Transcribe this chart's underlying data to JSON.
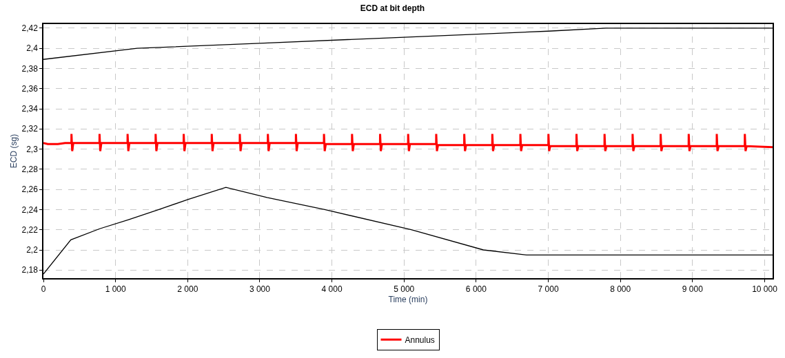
{
  "chart_data": {
    "type": "line",
    "title": "ECD at bit depth",
    "xlabel": "Time (min)",
    "ylabel": "ECD (sg)",
    "xlim": [
      0,
      10110
    ],
    "ylim": [
      2.172,
      2.424
    ],
    "xticks": [
      0,
      {
        "value": 1000,
        "label": "1 000"
      },
      {
        "value": 2000,
        "label": "2 000"
      },
      {
        "value": 3000,
        "label": "3 000"
      },
      {
        "value": 4000,
        "label": "4 000"
      },
      {
        "value": 5000,
        "label": "5 000"
      },
      {
        "value": 6000,
        "label": "6 000"
      },
      {
        "value": 7000,
        "label": "7 000"
      },
      {
        "value": 8000,
        "label": "8 000"
      },
      {
        "value": 9000,
        "label": "9 000"
      },
      {
        "value": 10000,
        "label": "10 000"
      }
    ],
    "yticks": [
      {
        "value": 2.18,
        "label": "2,18"
      },
      {
        "value": 2.2,
        "label": "2,2"
      },
      {
        "value": 2.22,
        "label": "2,22"
      },
      {
        "value": 2.24,
        "label": "2,24"
      },
      {
        "value": 2.26,
        "label": "2,26"
      },
      {
        "value": 2.28,
        "label": "2,28"
      },
      {
        "value": 2.3,
        "label": "2,3"
      },
      {
        "value": 2.32,
        "label": "2,32"
      },
      {
        "value": 2.34,
        "label": "2,34"
      },
      {
        "value": 2.36,
        "label": "2,36"
      },
      {
        "value": 2.38,
        "label": "2,38"
      },
      {
        "value": 2.4,
        "label": "2,4"
      },
      {
        "value": 2.42,
        "label": "2,42"
      }
    ],
    "grid": true,
    "legend": "bottom",
    "marker": "none",
    "line_style": "solid",
    "series": [
      {
        "color": "#000000",
        "x": [
          0,
          1300,
          3000,
          5000,
          7000,
          7800,
          10110
        ],
        "values": [
          2.389,
          2.4,
          2.405,
          2.411,
          2.417,
          2.42,
          2.42
        ]
      },
      {
        "color": "#000000",
        "x": [
          0,
          380,
          780,
          1180,
          1600,
          2000,
          2530,
          3100,
          3900,
          5100,
          6100,
          6700,
          10110
        ],
        "values": [
          2.176,
          2.21,
          2.221,
          2.23,
          2.24,
          2.25,
          2.262,
          2.252,
          2.24,
          2.22,
          2.2,
          2.195,
          2.195
        ]
      },
      {
        "name": "Annulus",
        "color": "#ff0000",
        "x": [
          0,
          60,
          200,
          300,
          388,
          389,
          399,
          414,
          777,
          778,
          788,
          803,
          1166,
          1167,
          1177,
          1192,
          1555,
          1556,
          1566,
          1581,
          1944,
          1945,
          1955,
          1970,
          2333,
          2334,
          2344,
          2359,
          2722,
          2723,
          2733,
          2748,
          3111,
          3112,
          3122,
          3137,
          3500,
          3501,
          3511,
          3526,
          3889,
          3890,
          3900,
          3915,
          4278,
          4279,
          4289,
          4304,
          4667,
          4668,
          4678,
          4693,
          5056,
          5057,
          5067,
          5082,
          5445,
          5446,
          5456,
          5471,
          5834,
          5835,
          5845,
          5860,
          6223,
          6224,
          6234,
          6249,
          6612,
          6613,
          6623,
          6638,
          7001,
          7002,
          7012,
          7027,
          7390,
          7391,
          7401,
          7416,
          7779,
          7780,
          7790,
          7805,
          8168,
          8169,
          8179,
          8194,
          8557,
          8558,
          8568,
          8583,
          8946,
          8947,
          8957,
          8972,
          9335,
          9336,
          9346,
          9361,
          9724,
          9725,
          9735,
          9750,
          10110
        ],
        "values": [
          2.306,
          2.305,
          2.305,
          2.306,
          2.306,
          2.315,
          2.298,
          2.306,
          2.306,
          2.315,
          2.298,
          2.306,
          2.306,
          2.315,
          2.298,
          2.306,
          2.306,
          2.315,
          2.298,
          2.306,
          2.306,
          2.315,
          2.298,
          2.306,
          2.306,
          2.315,
          2.298,
          2.306,
          2.306,
          2.315,
          2.298,
          2.306,
          2.306,
          2.315,
          2.298,
          2.306,
          2.306,
          2.315,
          2.298,
          2.306,
          2.306,
          2.315,
          2.298,
          2.305,
          2.305,
          2.315,
          2.298,
          2.305,
          2.305,
          2.315,
          2.298,
          2.305,
          2.305,
          2.315,
          2.298,
          2.305,
          2.305,
          2.315,
          2.298,
          2.304,
          2.304,
          2.315,
          2.298,
          2.304,
          2.304,
          2.315,
          2.298,
          2.304,
          2.304,
          2.315,
          2.298,
          2.304,
          2.304,
          2.315,
          2.298,
          2.303,
          2.303,
          2.315,
          2.298,
          2.303,
          2.303,
          2.315,
          2.298,
          2.303,
          2.303,
          2.315,
          2.298,
          2.303,
          2.303,
          2.315,
          2.298,
          2.303,
          2.303,
          2.315,
          2.298,
          2.303,
          2.303,
          2.315,
          2.298,
          2.303,
          2.303,
          2.315,
          2.298,
          2.303,
          2.302
        ]
      }
    ]
  }
}
